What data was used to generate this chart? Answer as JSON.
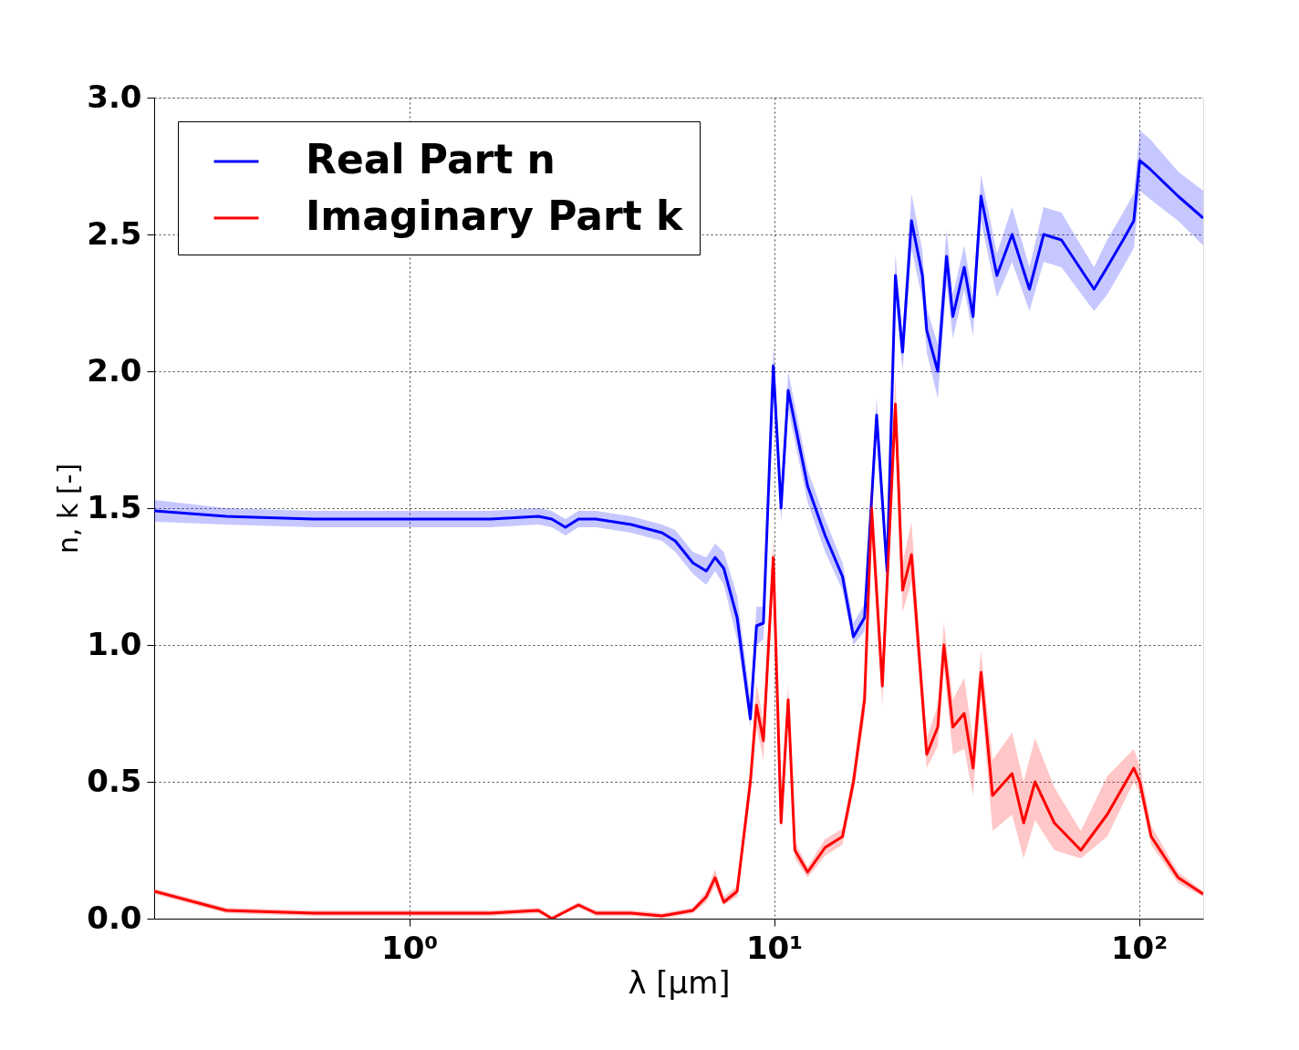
{
  "chart_data": {
    "type": "line",
    "xlabel": "λ [μm]",
    "ylabel": "n, k [-]",
    "log": "x",
    "xlim": [
      0.2,
      150
    ],
    "xticks": [
      {
        "value": 1,
        "label": "10⁰"
      },
      {
        "value": 10,
        "label": "10¹"
      },
      {
        "value": 100,
        "label": "10²"
      }
    ],
    "ylim": [
      0,
      3
    ],
    "yticks": [
      {
        "value": 0,
        "label": "0.0"
      },
      {
        "value": 0.5,
        "label": "0.5"
      },
      {
        "value": 1,
        "label": "1.0"
      },
      {
        "value": 1.5,
        "label": "1.5"
      },
      {
        "value": 2,
        "label": "2.0"
      },
      {
        "value": 2.5,
        "label": "2.5"
      },
      {
        "value": 3,
        "label": "3.0"
      }
    ],
    "grid": true,
    "legend": "top left",
    "line_style": "solid",
    "marker": "none",
    "series": [
      {
        "name": "Real Part n",
        "color": "#0000ff",
        "x": [
          0.2,
          0.315,
          0.548,
          1.0,
          1.67,
          2.26,
          2.46,
          2.68,
          2.91,
          3.25,
          4.06,
          4.93,
          5.36,
          5.99,
          6.52,
          6.89,
          7.28,
          7.92,
          8.61,
          8.95,
          9.35,
          9.95,
          10.45,
          10.93,
          12.36,
          13.8,
          15.4,
          16.5,
          17.7,
          19.1,
          20.4,
          21.5,
          22.5,
          23.8,
          25.5,
          26.2,
          28.1,
          29.7,
          30.9,
          33.2,
          35.1,
          36.9,
          40.8,
          44.9,
          50.1,
          54.8,
          61.3,
          75.3,
          81.8,
          90.5,
          96.8,
          100.5,
          107,
          128,
          150
        ],
        "values": [
          1.49,
          1.47,
          1.46,
          1.46,
          1.46,
          1.47,
          1.46,
          1.43,
          1.46,
          1.46,
          1.44,
          1.41,
          1.38,
          1.3,
          1.27,
          1.32,
          1.28,
          1.1,
          0.73,
          1.07,
          1.08,
          2.02,
          1.5,
          1.93,
          1.58,
          1.4,
          1.25,
          1.03,
          1.1,
          1.84,
          1.27,
          2.35,
          2.07,
          2.55,
          2.35,
          2.15,
          2.0,
          2.42,
          2.2,
          2.38,
          2.2,
          2.64,
          2.35,
          2.5,
          2.3,
          2.5,
          2.48,
          2.3,
          2.38,
          2.48,
          2.55,
          2.77,
          2.74,
          2.64,
          2.56
        ],
        "lower": [
          1.45,
          1.44,
          1.43,
          1.43,
          1.43,
          1.44,
          1.43,
          1.4,
          1.43,
          1.43,
          1.41,
          1.38,
          1.34,
          1.26,
          1.22,
          1.27,
          1.22,
          1.02,
          0.7,
          1.0,
          1.02,
          1.95,
          1.45,
          1.86,
          1.52,
          1.34,
          1.2,
          1.0,
          1.05,
          1.78,
          1.22,
          2.27,
          2.0,
          2.45,
          2.26,
          2.07,
          1.9,
          2.32,
          2.12,
          2.3,
          2.13,
          2.55,
          2.27,
          2.4,
          2.22,
          2.4,
          2.38,
          2.22,
          2.28,
          2.38,
          2.45,
          2.66,
          2.63,
          2.55,
          2.46
        ],
        "upper": [
          1.53,
          1.5,
          1.49,
          1.49,
          1.49,
          1.5,
          1.49,
          1.46,
          1.49,
          1.49,
          1.47,
          1.44,
          1.42,
          1.34,
          1.32,
          1.37,
          1.34,
          1.18,
          0.8,
          1.14,
          1.14,
          2.1,
          1.56,
          2.0,
          1.64,
          1.46,
          1.3,
          1.08,
          1.15,
          1.9,
          1.32,
          2.43,
          2.14,
          2.65,
          2.44,
          2.23,
          2.1,
          2.52,
          2.28,
          2.46,
          2.27,
          2.72,
          2.43,
          2.6,
          2.38,
          2.6,
          2.58,
          2.38,
          2.48,
          2.58,
          2.65,
          2.88,
          2.85,
          2.73,
          2.66
        ]
      },
      {
        "name": "Imaginary Part k",
        "color": "#ff0000",
        "x": [
          0.2,
          0.315,
          0.548,
          1.0,
          1.67,
          2.26,
          2.46,
          2.91,
          3.25,
          4.06,
          4.93,
          5.99,
          6.52,
          6.89,
          7.28,
          7.92,
          8.61,
          8.95,
          9.35,
          9.95,
          10.45,
          10.93,
          11.4,
          12.36,
          13.8,
          15.4,
          16.5,
          17.7,
          18.5,
          19.8,
          21.5,
          22.5,
          23.8,
          26.2,
          28.1,
          29.2,
          30.9,
          33.2,
          35.1,
          36.9,
          39.7,
          44.9,
          48.3,
          51.9,
          58.6,
          69.3,
          81.8,
          96.8,
          100.5,
          108,
          128,
          150
        ],
        "values": [
          0.1,
          0.03,
          0.02,
          0.02,
          0.02,
          0.03,
          0.0,
          0.05,
          0.02,
          0.02,
          0.01,
          0.03,
          0.08,
          0.15,
          0.06,
          0.1,
          0.5,
          0.78,
          0.65,
          1.32,
          0.35,
          0.8,
          0.25,
          0.17,
          0.26,
          0.3,
          0.5,
          0.8,
          1.5,
          0.85,
          1.88,
          1.2,
          1.33,
          0.6,
          0.7,
          1.0,
          0.7,
          0.75,
          0.55,
          0.9,
          0.45,
          0.53,
          0.35,
          0.5,
          0.35,
          0.25,
          0.38,
          0.55,
          0.5,
          0.3,
          0.15,
          0.09
        ],
        "lower": [
          0.09,
          0.02,
          0.01,
          0.01,
          0.01,
          0.02,
          0.0,
          0.04,
          0.01,
          0.01,
          0.0,
          0.02,
          0.06,
          0.12,
          0.05,
          0.08,
          0.45,
          0.7,
          0.58,
          1.25,
          0.32,
          0.74,
          0.22,
          0.15,
          0.23,
          0.27,
          0.46,
          0.74,
          1.4,
          0.78,
          1.78,
          1.12,
          1.23,
          0.55,
          0.63,
          0.92,
          0.6,
          0.62,
          0.45,
          0.82,
          0.32,
          0.38,
          0.22,
          0.36,
          0.25,
          0.22,
          0.3,
          0.5,
          0.46,
          0.27,
          0.13,
          0.08
        ],
        "upper": [
          0.11,
          0.04,
          0.03,
          0.03,
          0.03,
          0.04,
          0.01,
          0.06,
          0.03,
          0.03,
          0.02,
          0.04,
          0.1,
          0.18,
          0.08,
          0.12,
          0.55,
          0.86,
          0.72,
          1.4,
          0.38,
          0.86,
          0.28,
          0.19,
          0.29,
          0.33,
          0.54,
          0.86,
          1.6,
          0.92,
          1.98,
          1.3,
          1.45,
          0.66,
          0.78,
          1.08,
          0.8,
          0.88,
          0.65,
          0.98,
          0.58,
          0.68,
          0.5,
          0.66,
          0.48,
          0.32,
          0.52,
          0.62,
          0.56,
          0.34,
          0.17,
          0.1
        ]
      }
    ]
  }
}
